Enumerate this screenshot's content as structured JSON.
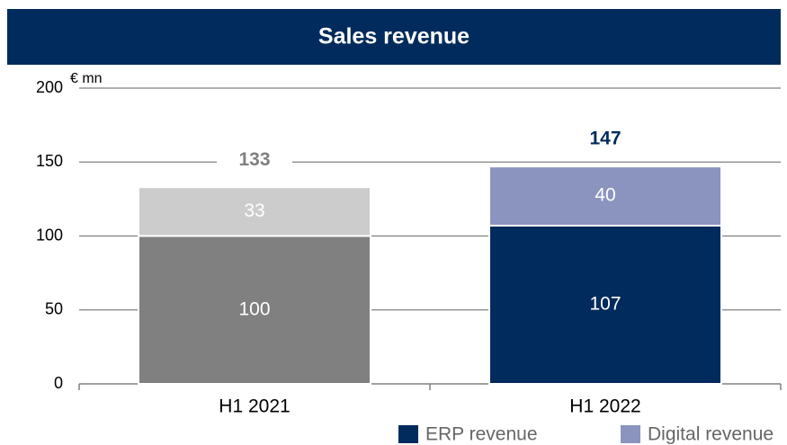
{
  "chart_data": {
    "type": "stacked_bar",
    "title": "Sales revenue",
    "y_label": "€ mn",
    "categories": [
      "H1 2021",
      "H1 2022"
    ],
    "series": [
      {
        "name": "ERP revenue",
        "color": "#002b5c",
        "colors": [
          "#808080",
          "#002b5c"
        ],
        "values": [
          100,
          107
        ]
      },
      {
        "name": "Digital revenue",
        "color": "#8a94bf",
        "colors": [
          "#cccccc",
          "#8a94bf"
        ],
        "values": [
          33,
          40
        ]
      }
    ],
    "totals": [
      133,
      147
    ],
    "total_colors": [
      "#808080",
      "#002b5c"
    ],
    "ylim": [
      0,
      200
    ],
    "yticks": [
      0,
      50,
      100,
      150,
      200
    ],
    "grid": true,
    "legend": "bottom-right"
  }
}
